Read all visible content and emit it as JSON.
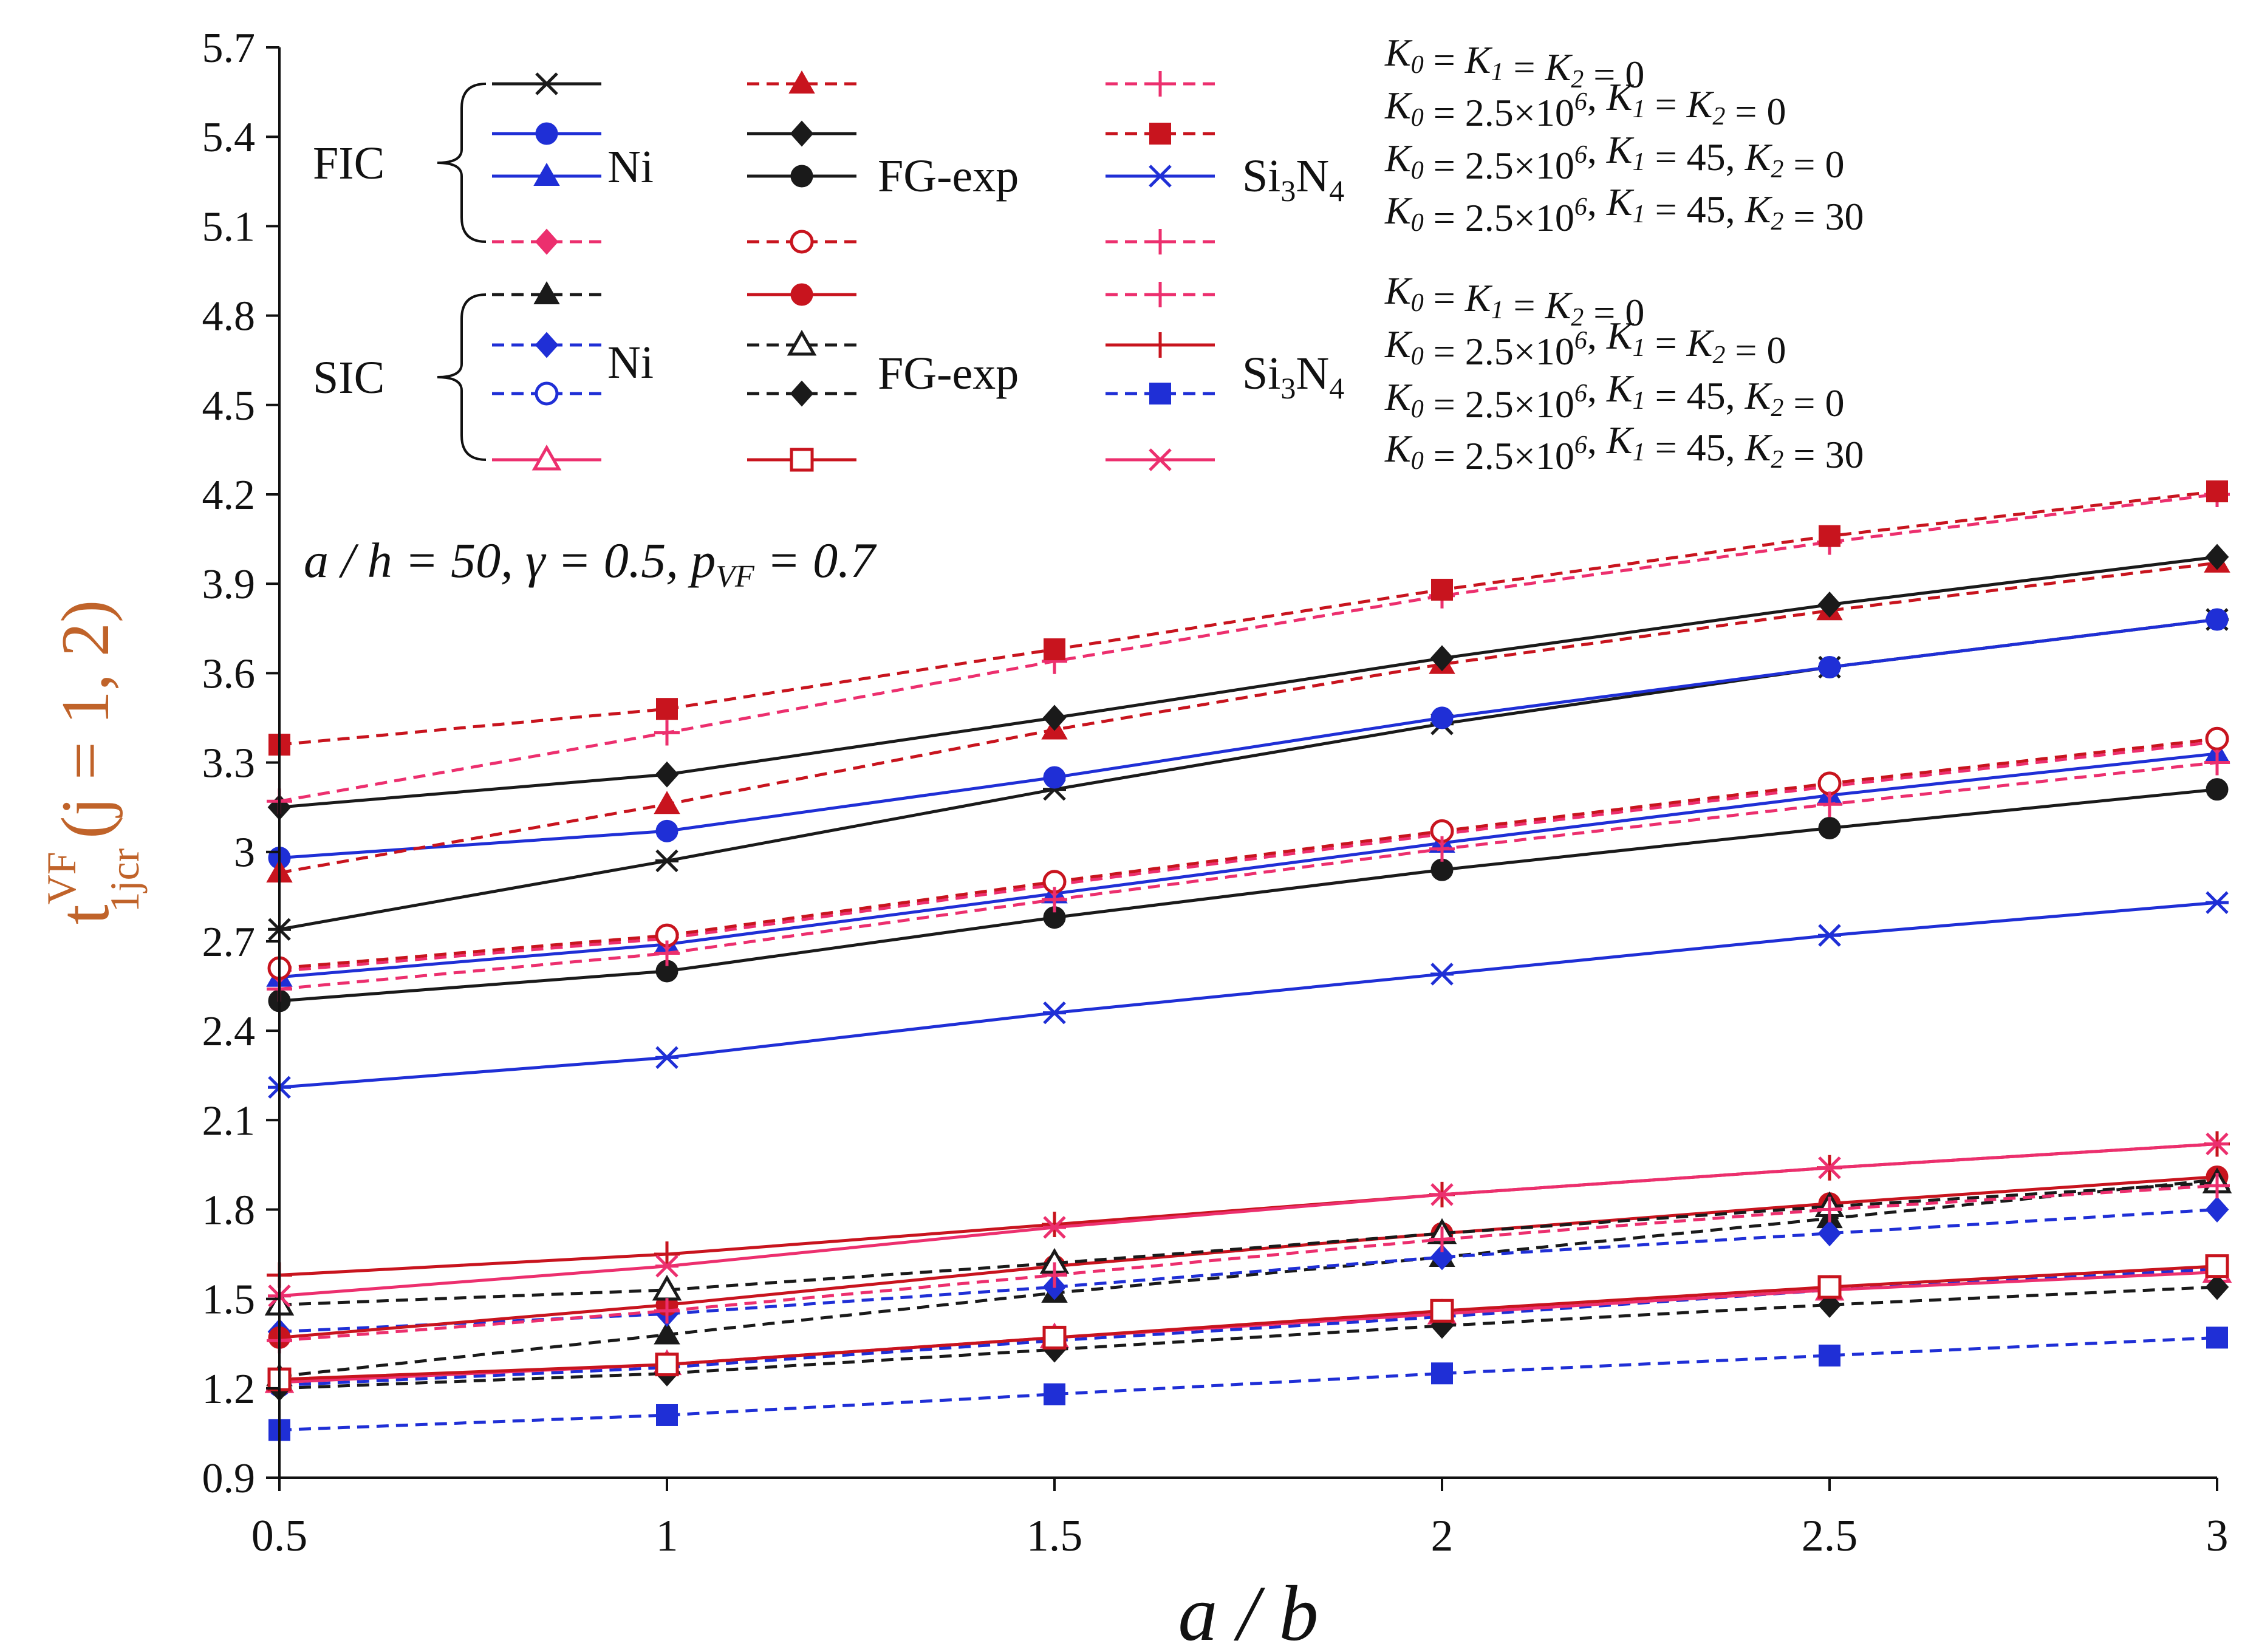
{
  "chart_data": {
    "type": "line",
    "x": [
      0.5,
      1,
      1.5,
      2,
      2.5,
      3
    ],
    "xlabel": "a / b",
    "ylabel": {
      "base": "t",
      "sup": "VF",
      "sub": "1jcr",
      "tail": "(j = 1, 2)"
    },
    "ylabel_color": "#c0632a",
    "xlim": [
      0.5,
      3
    ],
    "ylim": [
      0.9,
      5.7
    ],
    "x_ticks": [
      "0.5",
      "1",
      "1.5",
      "2",
      "2.5",
      "3"
    ],
    "y_ticks": [
      "0.9",
      "1.2",
      "1.5",
      "1.8",
      "2.1",
      "2.4",
      "2.7",
      "3",
      "3.3",
      "3.6",
      "3.9",
      "4.2",
      "4.5",
      "4.8",
      "5.1",
      "5.4",
      "5.7"
    ],
    "annotation": "a / h = 50, γ = 0.5, p_VF = 0.7",
    "legend": {
      "groups": [
        {
          "name": "FIC",
          "materials": [
            "Ni",
            "FG-exp",
            "Si3N4"
          ],
          "conditions": [
            "K0 = K1 = K2 = 0",
            "K0 = 2.5×10^6, K1 = K2 = 0",
            "K0 = 2.5×10^6, K1 = 45, K2 = 0",
            "K0 = 2.5×10^6, K1 = 45, K2 = 30"
          ]
        },
        {
          "name": "SIC",
          "materials": [
            "Ni",
            "FG-exp",
            "Si3N4"
          ],
          "conditions": [
            "K0 = K1 = K2 = 0",
            "K0 = 2.5×10^6, K1 = K2 = 0",
            "K0 = 2.5×10^6, K1 = 45, K2 = 0",
            "K0 = 2.5×10^6, K1 = 45, K2 = 30"
          ]
        }
      ]
    },
    "series": [
      {
        "group": "FIC",
        "material": "Ni",
        "foundation": "K0 = K1 = K2 = 0",
        "color": "#1a1a1a",
        "dash": false,
        "marker": "asterisk",
        "values": [
          2.74,
          2.97,
          3.21,
          3.43,
          3.62,
          3.78
        ]
      },
      {
        "group": "FIC",
        "material": "Ni",
        "foundation": "K0 = 2.5×10^6, K1 = K2 = 0",
        "color": "#1f2fd6",
        "dash": false,
        "marker": "circle",
        "values": [
          2.98,
          3.07,
          3.25,
          3.45,
          3.62,
          3.78
        ]
      },
      {
        "group": "FIC",
        "material": "Ni",
        "foundation": "K0 = 2.5×10^6, K1 = 45, K2 = 0",
        "color": "#1f2fd6",
        "dash": false,
        "marker": "triangle",
        "values": [
          2.58,
          2.69,
          2.86,
          3.03,
          3.19,
          3.33
        ]
      },
      {
        "group": "FIC",
        "material": "Ni",
        "foundation": "K0 = 2.5×10^6, K1 = 45, K2 = 30",
        "color": "#ec2f6e",
        "dash": true,
        "marker": "diamond",
        "values": [
          2.6,
          2.71,
          2.89,
          3.06,
          3.22,
          3.37
        ]
      },
      {
        "group": "FIC",
        "material": "FG-exp",
        "foundation": "K0 = K1 = K2 = 0",
        "color": "#c8141e",
        "dash": true,
        "marker": "triangle",
        "values": [
          2.93,
          3.16,
          3.41,
          3.63,
          3.81,
          3.97
        ]
      },
      {
        "group": "FIC",
        "material": "FG-exp",
        "foundation": "K0 = 2.5×10^6, K1 = K2 = 0",
        "color": "#1a1a1a",
        "dash": false,
        "marker": "diamond",
        "values": [
          3.15,
          3.26,
          3.45,
          3.65,
          3.83,
          3.99
        ]
      },
      {
        "group": "FIC",
        "material": "FG-exp",
        "foundation": "K0 = 2.5×10^6, K1 = 45, K2 = 0",
        "color": "#1a1a1a",
        "dash": false,
        "marker": "circle",
        "values": [
          2.5,
          2.6,
          2.78,
          2.94,
          3.08,
          3.21
        ]
      },
      {
        "group": "FIC",
        "material": "FG-exp",
        "foundation": "K0 = 2.5×10^6, K1 = 45, K2 = 30",
        "color": "#c8141e",
        "dash": true,
        "marker": "circle-open",
        "values": [
          2.61,
          2.72,
          2.9,
          3.07,
          3.23,
          3.38
        ]
      },
      {
        "group": "FIC",
        "material": "Si3N4",
        "foundation": "K0 = K1 = K2 = 0",
        "color": "#ec2f6e",
        "dash": true,
        "marker": "plus",
        "values": [
          3.17,
          3.4,
          3.64,
          3.86,
          4.04,
          4.2
        ]
      },
      {
        "group": "FIC",
        "material": "Si3N4",
        "foundation": "K0 = 2.5×10^6, K1 = K2 = 0",
        "color": "#c8141e",
        "dash": true,
        "marker": "square",
        "values": [
          3.36,
          3.48,
          3.68,
          3.88,
          4.06,
          4.21
        ]
      },
      {
        "group": "FIC",
        "material": "Si3N4",
        "foundation": "K0 = 2.5×10^6, K1 = 45, K2 = 0",
        "color": "#1f2fd6",
        "dash": false,
        "marker": "asterisk",
        "values": [
          2.21,
          2.31,
          2.46,
          2.59,
          2.72,
          2.83
        ]
      },
      {
        "group": "FIC",
        "material": "Si3N4",
        "foundation": "K0 = 2.5×10^6, K1 = 45, K2 = 30",
        "color": "#ec2f6e",
        "dash": true,
        "marker": "plus",
        "values": [
          2.54,
          2.66,
          2.84,
          3.01,
          3.16,
          3.3
        ]
      },
      {
        "group": "SIC",
        "material": "Ni",
        "foundation": "K0 = K1 = K2 = 0",
        "color": "#1a1a1a",
        "dash": true,
        "marker": "triangle",
        "values": [
          1.24,
          1.38,
          1.52,
          1.64,
          1.77,
          1.9
        ]
      },
      {
        "group": "SIC",
        "material": "Ni",
        "foundation": "K0 = 2.5×10^6, K1 = K2 = 0",
        "color": "#1f2fd6",
        "dash": true,
        "marker": "diamond",
        "values": [
          1.39,
          1.45,
          1.54,
          1.64,
          1.72,
          1.8
        ]
      },
      {
        "group": "SIC",
        "material": "Ni",
        "foundation": "K0 = 2.5×10^6, K1 = 45, K2 = 0",
        "color": "#1f2fd6",
        "dash": true,
        "marker": "circle-open",
        "values": [
          1.21,
          1.27,
          1.36,
          1.44,
          1.53,
          1.6
        ]
      },
      {
        "group": "SIC",
        "material": "Ni",
        "foundation": "K0 = 2.5×10^6, K1 = 45, K2 = 30",
        "color": "#ec2f6e",
        "dash": false,
        "marker": "triangle-open",
        "values": [
          1.22,
          1.28,
          1.37,
          1.45,
          1.53,
          1.59
        ]
      },
      {
        "group": "SIC",
        "material": "FG-exp",
        "foundation": "K0 = K1 = K2 = 0",
        "color": "#c8141e",
        "dash": false,
        "marker": "circle",
        "values": [
          1.37,
          1.48,
          1.61,
          1.72,
          1.82,
          1.91
        ]
      },
      {
        "group": "SIC",
        "material": "FG-exp",
        "foundation": "K0 = 2.5×10^6, K1 = K2 = 0",
        "color": "#1a1a1a",
        "dash": true,
        "marker": "triangle-open",
        "values": [
          1.48,
          1.53,
          1.62,
          1.72,
          1.81,
          1.89
        ]
      },
      {
        "group": "SIC",
        "material": "FG-exp",
        "foundation": "K0 = 2.5×10^6, K1 = 45, K2 = 0",
        "color": "#1a1a1a",
        "dash": true,
        "marker": "diamond",
        "values": [
          1.2,
          1.25,
          1.33,
          1.41,
          1.48,
          1.54
        ]
      },
      {
        "group": "SIC",
        "material": "FG-exp",
        "foundation": "K0 = 2.5×10^6, K1 = 45, K2 = 30",
        "color": "#c8141e",
        "dash": false,
        "marker": "square-open",
        "values": [
          1.23,
          1.28,
          1.37,
          1.46,
          1.54,
          1.61
        ]
      },
      {
        "group": "SIC",
        "material": "Si3N4",
        "foundation": "K0 = K1 = K2 = 0",
        "color": "#ec2f6e",
        "dash": true,
        "marker": "plus",
        "values": [
          1.36,
          1.46,
          1.58,
          1.7,
          1.8,
          1.88
        ]
      },
      {
        "group": "SIC",
        "material": "Si3N4",
        "foundation": "K0 = 2.5×10^6, K1 = K2 = 0",
        "color": "#c8141e",
        "dash": false,
        "marker": "plus",
        "values": [
          1.58,
          1.65,
          1.75,
          1.85,
          1.94,
          2.02
        ]
      },
      {
        "group": "SIC",
        "material": "Si3N4",
        "foundation": "K0 = 2.5×10^6, K1 = 45, K2 = 0",
        "color": "#1f2fd6",
        "dash": true,
        "marker": "square",
        "values": [
          1.06,
          1.11,
          1.18,
          1.25,
          1.31,
          1.37
        ]
      },
      {
        "group": "SIC",
        "material": "Si3N4",
        "foundation": "K0 = 2.5×10^6, K1 = 45, K2 = 30",
        "color": "#ec2f6e",
        "dash": false,
        "marker": "asterisk",
        "values": [
          1.51,
          1.61,
          1.74,
          1.85,
          1.94,
          2.02
        ]
      }
    ]
  }
}
